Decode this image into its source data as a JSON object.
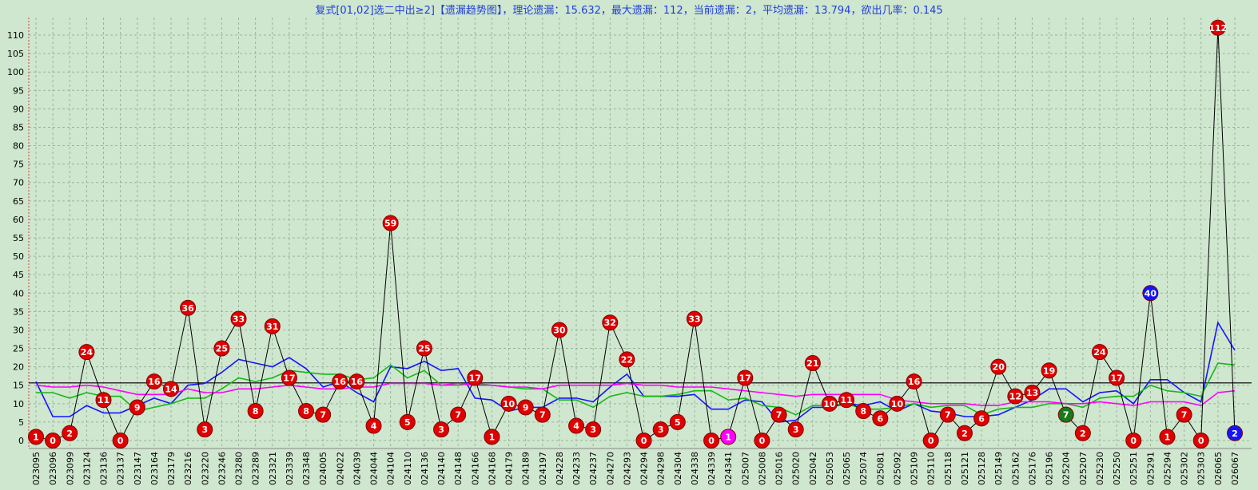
{
  "chart_data": {
    "type": "line",
    "title": "复式[01,02]选二中出≥2]【遗漏趋势图】，理论遗漏：15.632，最大遗漏：112，当前遗漏：2，平均遗漏：13.794，欲出几率：0.145",
    "theory_value": 15.632,
    "ylim": [
      0,
      112
    ],
    "y_ticks": [
      0,
      5,
      10,
      15,
      20,
      25,
      30,
      35,
      40,
      45,
      50,
      55,
      60,
      65,
      70,
      75,
      80,
      85,
      90,
      95,
      100,
      105,
      110
    ],
    "grid": true,
    "x_tick_labels": [
      "023095",
      "023096",
      "023099",
      "023124",
      "023136",
      "023137",
      "023147",
      "023164",
      "023179",
      "023216",
      "023220",
      "023246",
      "023280",
      "023289",
      "023321",
      "023339",
      "023348",
      "024005",
      "024022",
      "024039",
      "024044",
      "024104",
      "024110",
      "024136",
      "024140",
      "024148",
      "024166",
      "024168",
      "024179",
      "024189",
      "024197",
      "024228",
      "024233",
      "024237",
      "024270",
      "024293",
      "024294",
      "024298",
      "024304",
      "024338",
      "024339",
      "024341",
      "025007",
      "025008",
      "025016",
      "025020",
      "025042",
      "025053",
      "025065",
      "025074",
      "025081",
      "025092",
      "025109",
      "025110",
      "025118",
      "025121",
      "025128",
      "025149",
      "025162",
      "025176",
      "025196",
      "025204",
      "025207",
      "025230",
      "025250",
      "025251",
      "025291",
      "025294",
      "025302",
      "025303",
      "026065",
      "026067"
    ],
    "miss_values": [
      1,
      0,
      2,
      24,
      11,
      0,
      9,
      16,
      14,
      36,
      3,
      25,
      33,
      8,
      31,
      17,
      8,
      7,
      16,
      16,
      4,
      59,
      5,
      25,
      3,
      7,
      17,
      1,
      10,
      9,
      7,
      30,
      4,
      3,
      32,
      22,
      0,
      3,
      5,
      33,
      0,
      1,
      17,
      0,
      7,
      3,
      21,
      10,
      11,
      8,
      6,
      10,
      16,
      0,
      7,
      2,
      6,
      20,
      12,
      13,
      19,
      7,
      2,
      24,
      17,
      0,
      40,
      1,
      7,
      0,
      112,
      2
    ],
    "marker_colors": {
      "default": "#e00000",
      "magenta": "#ff00ff",
      "green": "#1a7a1a",
      "blue": "#1414ff"
    },
    "special_markers": {
      "41": "magenta",
      "61": "green",
      "66": "blue",
      "71": "blue"
    },
    "series": [
      {
        "values": [
          1,
          0,
          2,
          24,
          11,
          0,
          9,
          16,
          14,
          36,
          3,
          25,
          33,
          8,
          31,
          17,
          8,
          7,
          16,
          16,
          4,
          59,
          5,
          25,
          3,
          7,
          17,
          1,
          10,
          9,
          7,
          30,
          4,
          3,
          32,
          22,
          0,
          3,
          5,
          33,
          0,
          1,
          17,
          0,
          7,
          3,
          21,
          10,
          11,
          8,
          6,
          10,
          16,
          0,
          7,
          2,
          6,
          20,
          12,
          13,
          19,
          7,
          2,
          24,
          17,
          0,
          40,
          1,
          7,
          0,
          112,
          2
        ],
        "color": "#000000"
      },
      {
        "values": [
          16,
          6.5,
          6.5,
          9.5,
          7.5,
          7.5,
          9.5,
          11.5,
          10,
          15,
          15.5,
          18.5,
          22,
          21,
          20,
          22.5,
          19.5,
          14.5,
          16,
          13,
          10.5,
          20,
          19.5,
          21.5,
          19,
          19.5,
          11.5,
          11,
          8,
          9,
          9,
          11.5,
          11.5,
          10.5,
          14.5,
          18,
          12,
          12,
          12,
          12.5,
          8.5,
          8.5,
          11,
          10.5,
          5,
          5.5,
          9,
          9,
          10,
          9.5,
          10.5,
          8,
          10,
          8,
          7.5,
          6.5,
          6.5,
          7,
          9,
          11,
          14,
          14,
          10.5,
          13,
          13.5,
          10,
          16.5,
          16.5,
          13,
          10.5,
          32,
          24.5
        ],
        "color": "#1414ff"
      },
      {
        "values": [
          13,
          13,
          11.5,
          13,
          12,
          12,
          8,
          9,
          10,
          11.5,
          11.5,
          14,
          17,
          16,
          17,
          19,
          18.5,
          18,
          18,
          16.5,
          17,
          20.5,
          17,
          19,
          15,
          15,
          15.5,
          15,
          14.5,
          14,
          14,
          11,
          11,
          9,
          12,
          13,
          12,
          12,
          12.5,
          13.5,
          13.5,
          11,
          11.5,
          9.5,
          9,
          7,
          9.5,
          9.5,
          10,
          8.5,
          8.5,
          9,
          10,
          9,
          9.5,
          9.5,
          7,
          8.5,
          9,
          9,
          10,
          10,
          9,
          11.5,
          12,
          12,
          15,
          13.5,
          13,
          12,
          21,
          20.5
        ],
        "color": "#16b816"
      },
      {
        "values": [
          15,
          14.5,
          14.5,
          15,
          14.5,
          13.5,
          12.5,
          12.5,
          12.5,
          14,
          13,
          13,
          14,
          14,
          14.5,
          15,
          14.5,
          14,
          14,
          14.5,
          14.5,
          15.5,
          15.5,
          15.5,
          15,
          15.5,
          15,
          15,
          14.5,
          14.5,
          14,
          15,
          15,
          15,
          15,
          15.5,
          15,
          15,
          14.5,
          14.5,
          14.5,
          14,
          13.5,
          13,
          12.5,
          12,
          12.5,
          12.5,
          12.5,
          12.5,
          12.5,
          11,
          10.5,
          10,
          10,
          10,
          9.5,
          9.5,
          10.5,
          10.5,
          10.5,
          10,
          10,
          10.5,
          10,
          9.5,
          10.5,
          10.5,
          10.5,
          9.5,
          13,
          13.5
        ],
        "color": "#ff00ff"
      }
    ]
  }
}
